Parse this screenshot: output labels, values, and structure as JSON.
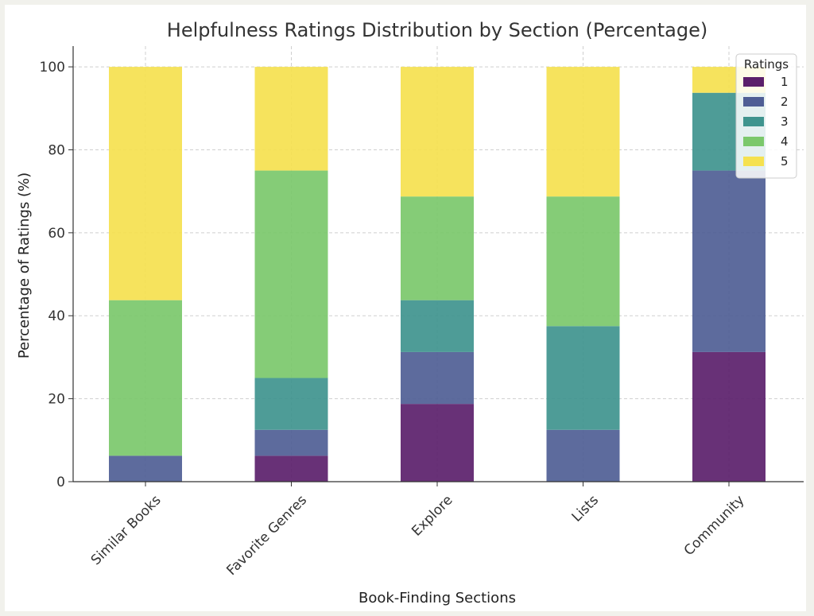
{
  "chart_data": {
    "type": "bar",
    "stacked": true,
    "title": "Helpfulness Ratings Distribution by Section (Percentage)",
    "xlabel": "Book-Finding Sections",
    "ylabel": "Percentage of Ratings (%)",
    "ylim": [
      0,
      105
    ],
    "yticks": [
      0,
      20,
      40,
      60,
      80,
      100
    ],
    "grid": true,
    "legend": {
      "title": "Ratings",
      "position": "top-right"
    },
    "categories": [
      "Similar Books",
      "Favorite Genres",
      "Explore",
      "Lists",
      "Community"
    ],
    "series": [
      {
        "name": "1",
        "color": "#5b1f6b",
        "values": [
          0,
          6.25,
          18.75,
          0,
          31.25
        ]
      },
      {
        "name": "2",
        "color": "#4f5e95",
        "values": [
          6.25,
          6.25,
          12.5,
          12.5,
          43.75
        ]
      },
      {
        "name": "3",
        "color": "#3f948e",
        "values": [
          0,
          12.5,
          12.5,
          25,
          18.75
        ]
      },
      {
        "name": "4",
        "color": "#7bc86b",
        "values": [
          37.5,
          50,
          25,
          31.25,
          0
        ]
      },
      {
        "name": "5",
        "color": "#f5e14f",
        "values": [
          56.25,
          25,
          31.25,
          31.25,
          6.25
        ]
      }
    ]
  }
}
